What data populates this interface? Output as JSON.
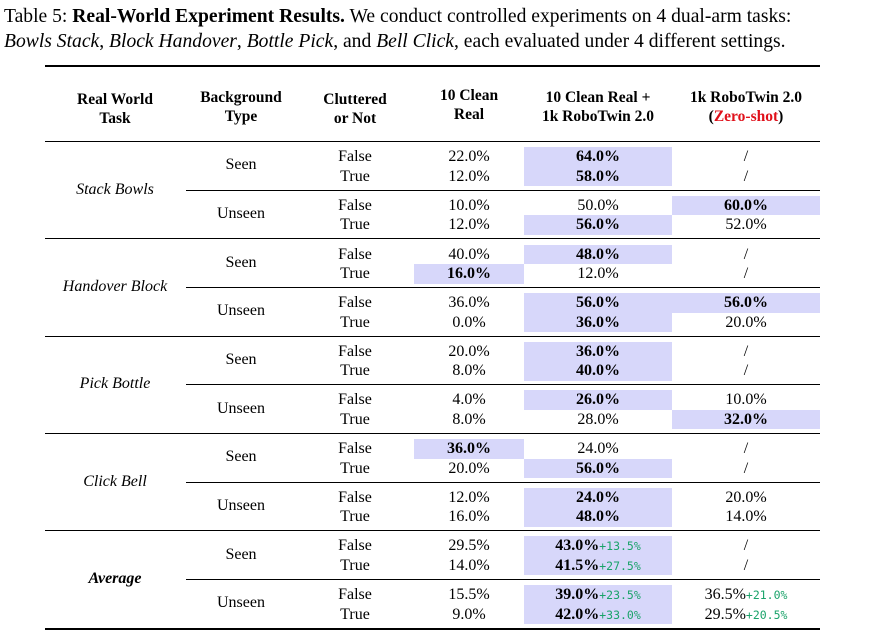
{
  "caption": {
    "label": "Table 5:",
    "title": "Real-World Experiment Results.",
    "text1": " We conduct controlled experiments on 4 dual-arm tasks:",
    "task1": "Bowls Stack",
    "sep1": ", ",
    "task2": "Block Handover",
    "sep2": ", ",
    "task3": "Bottle Pick",
    "sep3": ", and ",
    "task4": "Bell Click",
    "text2": ", each evaluated under 4 different settings."
  },
  "headers": {
    "task": [
      "Real World",
      "Task"
    ],
    "bg": [
      "Background",
      "Type"
    ],
    "clutter": [
      "Cluttered",
      "or Not"
    ],
    "clean": [
      "10 Clean",
      "Real"
    ],
    "mix": [
      "10 Clean Real +",
      "1k RoboTwin 2.0"
    ],
    "zero": [
      "1k RoboTwin 2.0",
      "(",
      "Zero-shot",
      ")"
    ]
  },
  "colors": {
    "highlight": "#d7d7fa",
    "delta": "#1aa36a",
    "zero_shot": "#e0101a"
  },
  "groups": [
    {
      "task": "Stack Bowls",
      "subs": [
        {
          "bg": "Seen",
          "rows": [
            {
              "c": "False",
              "clean": "22.0%",
              "mix": "64.0%",
              "mix_b": true,
              "mix_hl": true,
              "zero": "/"
            },
            {
              "c": "True",
              "clean": "12.0%",
              "mix": "58.0%",
              "mix_b": true,
              "mix_hl": true,
              "zero": "/"
            }
          ]
        },
        {
          "bg": "Unseen",
          "rows": [
            {
              "c": "False",
              "clean": "10.0%",
              "mix": "50.0%",
              "zero": "60.0%",
              "zero_b": true,
              "zero_hl": true
            },
            {
              "c": "True",
              "clean": "12.0%",
              "mix": "56.0%",
              "mix_b": true,
              "mix_hl": true,
              "zero": "52.0%"
            }
          ]
        }
      ]
    },
    {
      "task": "Handover Block",
      "subs": [
        {
          "bg": "Seen",
          "rows": [
            {
              "c": "False",
              "clean": "40.0%",
              "mix": "48.0%",
              "mix_b": true,
              "mix_hl": true,
              "zero": "/"
            },
            {
              "c": "True",
              "clean": "16.0%",
              "clean_b": true,
              "clean_hl": true,
              "mix": "12.0%",
              "zero": "/"
            }
          ]
        },
        {
          "bg": "Unseen",
          "rows": [
            {
              "c": "False",
              "clean": "36.0%",
              "mix": "56.0%",
              "mix_b": true,
              "mix_hl": true,
              "zero": "56.0%",
              "zero_b": true,
              "zero_hl": true
            },
            {
              "c": "True",
              "clean": "0.0%",
              "mix": "36.0%",
              "mix_b": true,
              "mix_hl": true,
              "zero": "20.0%"
            }
          ]
        }
      ]
    },
    {
      "task": "Pick Bottle",
      "subs": [
        {
          "bg": "Seen",
          "rows": [
            {
              "c": "False",
              "clean": "20.0%",
              "mix": "36.0%",
              "mix_b": true,
              "mix_hl": true,
              "zero": "/"
            },
            {
              "c": "True",
              "clean": "8.0%",
              "mix": "40.0%",
              "mix_b": true,
              "mix_hl": true,
              "zero": "/"
            }
          ]
        },
        {
          "bg": "Unseen",
          "rows": [
            {
              "c": "False",
              "clean": "4.0%",
              "mix": "26.0%",
              "mix_b": true,
              "mix_hl": true,
              "zero": "10.0%"
            },
            {
              "c": "True",
              "clean": "8.0%",
              "mix": "28.0%",
              "zero": "32.0%",
              "zero_b": true,
              "zero_hl": true
            }
          ]
        }
      ]
    },
    {
      "task": "Click Bell",
      "subs": [
        {
          "bg": "Seen",
          "rows": [
            {
              "c": "False",
              "clean": "36.0%",
              "clean_b": true,
              "clean_hl": true,
              "mix": "24.0%",
              "zero": "/"
            },
            {
              "c": "True",
              "clean": "20.0%",
              "mix": "56.0%",
              "mix_b": true,
              "mix_hl": true,
              "zero": "/"
            }
          ]
        },
        {
          "bg": "Unseen",
          "rows": [
            {
              "c": "False",
              "clean": "12.0%",
              "mix": "24.0%",
              "mix_b": true,
              "mix_hl": true,
              "zero": "20.0%"
            },
            {
              "c": "True",
              "clean": "16.0%",
              "mix": "48.0%",
              "mix_b": true,
              "mix_hl": true,
              "zero": "14.0%"
            }
          ]
        }
      ]
    },
    {
      "task": "Average",
      "avg": true,
      "subs": [
        {
          "bg": "Seen",
          "rows": [
            {
              "c": "False",
              "clean": "29.5%",
              "mix": "43.0%",
              "mix_b": true,
              "mix_hl": true,
              "mix_d": "+13.5%",
              "zero": "/"
            },
            {
              "c": "True",
              "clean": "14.0%",
              "mix": "41.5%",
              "mix_b": true,
              "mix_hl": true,
              "mix_d": "+27.5%",
              "zero": "/"
            }
          ]
        },
        {
          "bg": "Unseen",
          "rows": [
            {
              "c": "False",
              "clean": "15.5%",
              "mix": "39.0%",
              "mix_b": true,
              "mix_hl": true,
              "mix_d": "+23.5%",
              "zero": "36.5%",
              "zero_d": "+21.0%"
            },
            {
              "c": "True",
              "clean": "9.0%",
              "mix": "42.0%",
              "mix_b": true,
              "mix_hl": true,
              "mix_d": "+33.0%",
              "zero": "29.5%",
              "zero_d": "+20.5%"
            }
          ]
        }
      ]
    }
  ]
}
